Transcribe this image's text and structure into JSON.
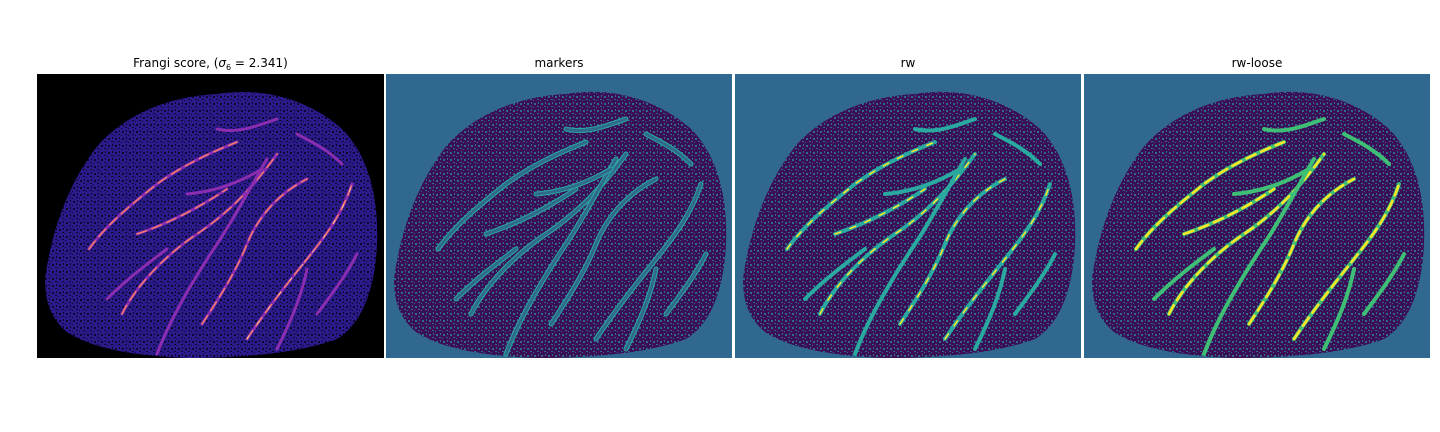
{
  "panels": [
    {
      "id": "frangi",
      "title_prefix": "Frangi score, (",
      "title_symbol": "σ",
      "title_subscript": "6",
      "title_suffix": " = 2.341)",
      "colors": {
        "bg": "#000000",
        "tissue": "#2a1a8a",
        "speckle": "#0d0830",
        "vessel": "#8a2db0",
        "vessel_hot": "#f27a6a",
        "vessel_peak": "#fcd98a"
      }
    },
    {
      "id": "markers",
      "title": "markers",
      "colors": {
        "bg": "#306890",
        "tissue": "#3a0f55",
        "speckle": "#2f6a8d",
        "vessel": "#2f6a8d",
        "edge": "#2aa9a0"
      }
    },
    {
      "id": "rw",
      "title": "rw",
      "colors": {
        "bg": "#306890",
        "tissue": "#3a0f55",
        "speckle": "#2f6a8d",
        "vessel": "#2aa9a0",
        "vessel_hot": "#fde725"
      }
    },
    {
      "id": "rw-loose",
      "title": "rw-loose",
      "colors": {
        "bg": "#306890",
        "tissue": "#3a0f55",
        "speckle": "#2f6a8d",
        "vessel": "#3fbf76",
        "vessel_hot": "#fde725"
      }
    }
  ]
}
